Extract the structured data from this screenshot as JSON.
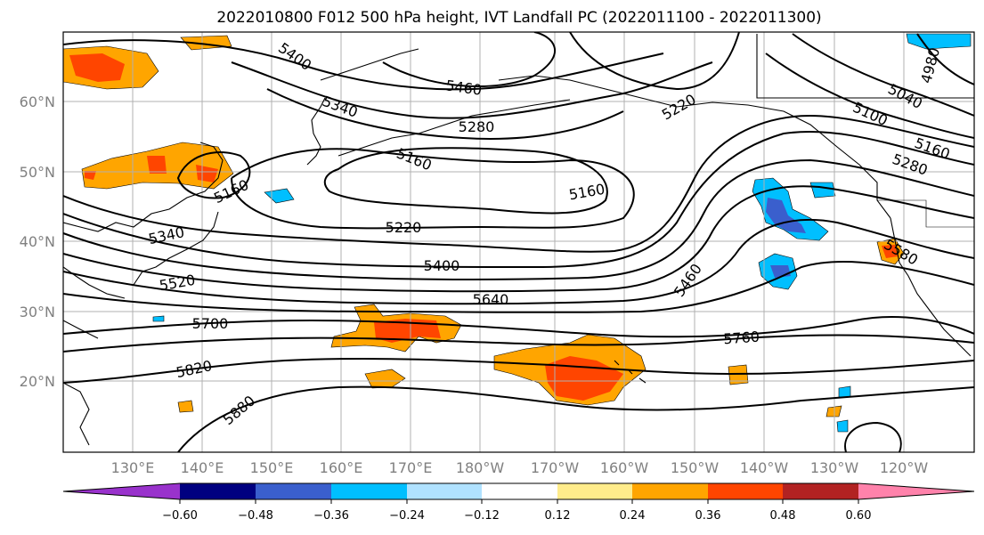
{
  "title": "2022010800 F012 500 hPa height, IVT Landfall PC (2022011100 - 2022011300)",
  "lon_labels": [
    "130°E",
    "140°E",
    "150°E",
    "160°E",
    "170°E",
    "180°W",
    "170°W",
    "160°W",
    "150°W",
    "140°W",
    "130°W",
    "120°W"
  ],
  "lat_labels": [
    "20°N",
    "30°N",
    "40°N",
    "50°N",
    "60°N"
  ],
  "colorbar": {
    "ticks": [
      "−0.60",
      "−0.48",
      "−0.36",
      "−0.24",
      "−0.12",
      "0.12",
      "0.24",
      "0.36",
      "0.48",
      "0.60"
    ],
    "colors": [
      "#9932cc",
      "#000080",
      "#3a5fcd",
      "#00bfff",
      "#b0e2ff",
      "#ffffff",
      "#ffec8b",
      "#ffa500",
      "#ff4500",
      "#b22222",
      "#ff82ab"
    ]
  },
  "contour_labels": [
    {
      "text": "5400",
      "name": "label-5400-a"
    },
    {
      "text": "5460",
      "name": "label-5460-a"
    },
    {
      "text": "5340",
      "name": "label-5340-a"
    },
    {
      "text": "5280",
      "name": "label-5280-a"
    },
    {
      "text": "5160",
      "name": "label-5160-a"
    },
    {
      "text": "5160",
      "name": "label-5160-b"
    },
    {
      "text": "5160",
      "name": "label-5160-c"
    },
    {
      "text": "5220",
      "name": "label-5220-a"
    },
    {
      "text": "5340",
      "name": "label-5340-b"
    },
    {
      "text": "5400",
      "name": "label-5400-b"
    },
    {
      "text": "5520",
      "name": "label-5520-a"
    },
    {
      "text": "5640",
      "name": "label-5640-a"
    },
    {
      "text": "5700",
      "name": "label-5700-a"
    },
    {
      "text": "5820",
      "name": "label-5820-a"
    },
    {
      "text": "5880",
      "name": "label-5880-a"
    },
    {
      "text": "5760",
      "name": "label-5760-a"
    },
    {
      "text": "5460",
      "name": "label-5460-b"
    },
    {
      "text": "5220",
      "name": "label-5220-b"
    },
    {
      "text": "5040",
      "name": "label-5040-a"
    },
    {
      "text": "4980",
      "name": "label-4980-a"
    },
    {
      "text": "5100",
      "name": "label-5100-a"
    },
    {
      "text": "5160",
      "name": "label-5160-d"
    },
    {
      "text": "5280",
      "name": "label-5280-b"
    },
    {
      "text": "5580",
      "name": "label-5580-a"
    }
  ]
}
